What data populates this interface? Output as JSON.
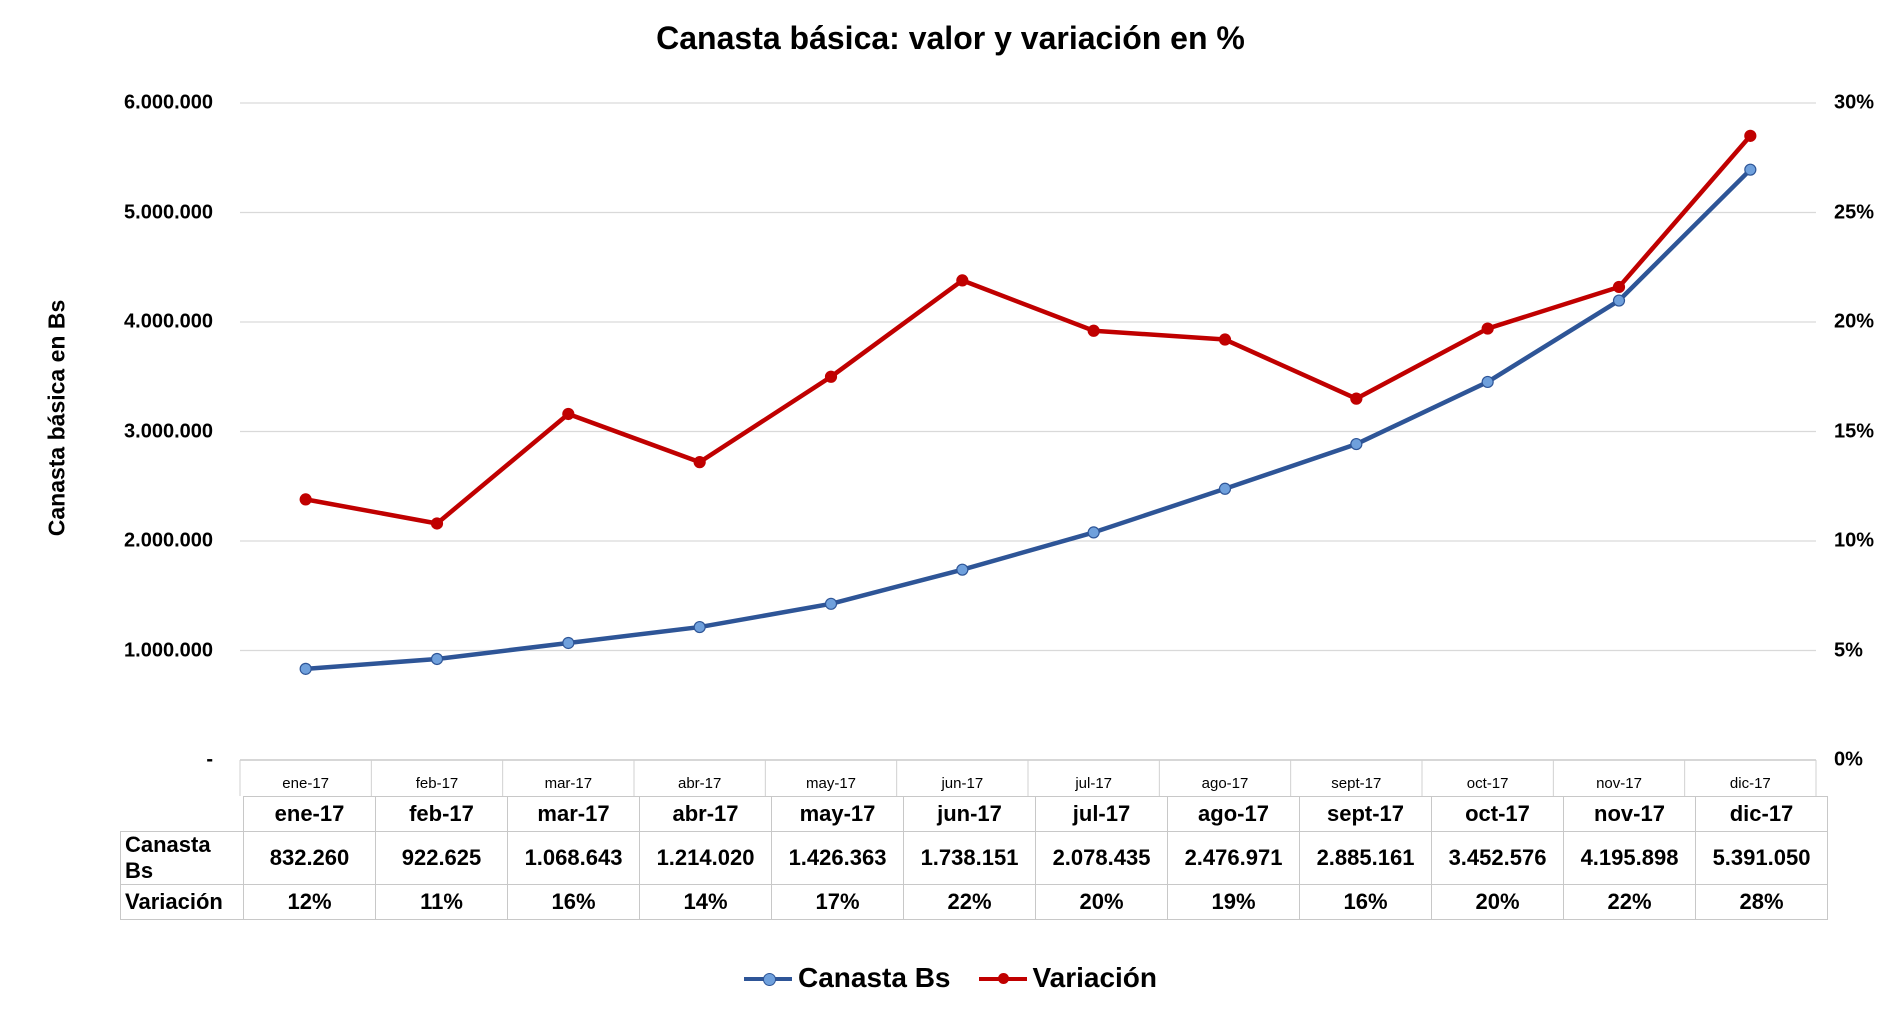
{
  "chart_data": {
    "type": "line",
    "title": "Canasta básica: valor y variación en %",
    "ylabel": "Canasta básica en Bs",
    "y2label": "",
    "categories": [
      "ene-17",
      "feb-17",
      "mar-17",
      "abr-17",
      "may-17",
      "jun-17",
      "jul-17",
      "ago-17",
      "sept-17",
      "oct-17",
      "nov-17",
      "dic-17"
    ],
    "ylim": [
      0,
      6000000
    ],
    "y2lim": [
      0,
      0.3
    ],
    "yticks": [
      "-",
      "1.000.000",
      "2.000.000",
      "3.000.000",
      "4.000.000",
      "5.000.000",
      "6.000.000"
    ],
    "y2ticks": [
      "0%",
      "5%",
      "10%",
      "15%",
      "20%",
      "25%",
      "30%"
    ],
    "grid": true,
    "legend_position": "bottom",
    "series": [
      {
        "name": "Canasta Bs",
        "axis": "left",
        "color": "#2e5597",
        "marker_color": "#6fa0dc",
        "values": [
          832260,
          922625,
          1068643,
          1214020,
          1426363,
          1738151,
          2078435,
          2476971,
          2885161,
          3452576,
          4195898,
          5391050
        ],
        "labels": [
          "832.260",
          "922.625",
          "1.068.643",
          "1.214.020",
          "1.426.363",
          "1.738.151",
          "2.078.435",
          "2.476.971",
          "2.885.161",
          "3.452.576",
          "4.195.898",
          "5.391.050"
        ]
      },
      {
        "name": "Variación",
        "axis": "right",
        "color": "#c00000",
        "marker_color": "#c00000",
        "values": [
          0.119,
          0.108,
          0.158,
          0.136,
          0.175,
          0.219,
          0.196,
          0.192,
          0.165,
          0.197,
          0.216,
          0.285
        ],
        "labels": [
          "12%",
          "11%",
          "16%",
          "14%",
          "17%",
          "22%",
          "20%",
          "19%",
          "16%",
          "20%",
          "22%",
          "28%"
        ]
      }
    ]
  }
}
